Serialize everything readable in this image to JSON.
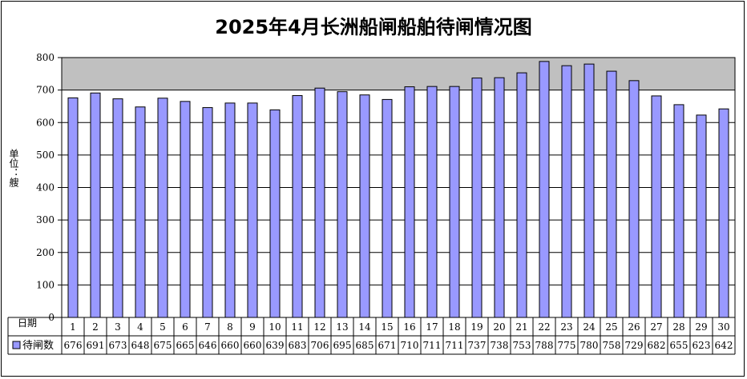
{
  "chart_data": {
    "type": "bar",
    "title": "2025年4月长洲船闸船舶待闸情况图",
    "ylabel": "单位：艘",
    "xlabel": "日期",
    "ylim": [
      0,
      800
    ],
    "yticks": [
      0,
      100,
      200,
      300,
      400,
      500,
      600,
      700,
      800
    ],
    "categories": [
      "1",
      "2",
      "3",
      "4",
      "5",
      "6",
      "7",
      "8",
      "9",
      "10",
      "11",
      "12",
      "13",
      "14",
      "15",
      "16",
      "17",
      "18",
      "19",
      "20",
      "21",
      "22",
      "23",
      "24",
      "25",
      "26",
      "27",
      "28",
      "29",
      "30"
    ],
    "series": [
      {
        "name": "待闸数",
        "values": [
          676,
          691,
          673,
          648,
          675,
          665,
          646,
          660,
          660,
          639,
          683,
          706,
          695,
          685,
          671,
          710,
          711,
          711,
          737,
          738,
          753,
          788,
          775,
          780,
          758,
          729,
          682,
          655,
          623,
          642
        ]
      }
    ],
    "bar_color": "#9999ff",
    "plot_background": "#c0c0c0",
    "grid": true,
    "legend": "data-table"
  }
}
